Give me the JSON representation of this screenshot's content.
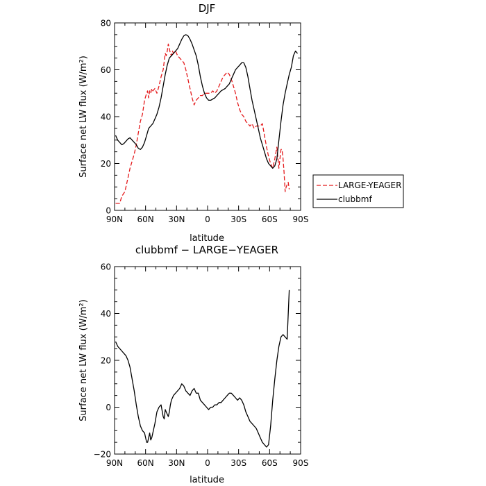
{
  "chart_data": [
    {
      "type": "line",
      "title": "DJF",
      "xlabel": "latitude",
      "ylabel": "Surface net LW flux (W/m²)",
      "xlim": [
        90,
        -90
      ],
      "ylim": [
        0,
        80
      ],
      "x_ticks": [
        {
          "value": 90,
          "label": "90N"
        },
        {
          "value": 60,
          "label": "60N"
        },
        {
          "value": 30,
          "label": "30N"
        },
        {
          "value": 0,
          "label": "0"
        },
        {
          "value": -30,
          "label": "30S"
        },
        {
          "value": -60,
          "label": "60S"
        },
        {
          "value": -90,
          "label": "90S"
        }
      ],
      "y_ticks": [
        {
          "value": 0,
          "label": "0"
        },
        {
          "value": 20,
          "label": "20"
        },
        {
          "value": 40,
          "label": "40"
        },
        {
          "value": 60,
          "label": "60"
        },
        {
          "value": 80,
          "label": "80"
        }
      ],
      "legend_position": "right",
      "series": [
        {
          "name": "LARGE-YEAGER",
          "color": "#e41a1c",
          "style": "dashed",
          "x": [
            89,
            85,
            83,
            80,
            77,
            75,
            73,
            71,
            69,
            67,
            65,
            63,
            61,
            59,
            58,
            57,
            56,
            55,
            54,
            53,
            51,
            49,
            47,
            45,
            43,
            41,
            40,
            39,
            38,
            37,
            36,
            35,
            34,
            33,
            31,
            29,
            27,
            25,
            23,
            21,
            19,
            17,
            15,
            13,
            11,
            9,
            7,
            5,
            3,
            1,
            -1,
            -3,
            -5,
            -7,
            -9,
            -11,
            -13,
            -15,
            -17,
            -19,
            -21,
            -23,
            -25,
            -27,
            -29,
            -31,
            -33,
            -35,
            -37,
            -39,
            -41,
            -43,
            -45,
            -47,
            -49,
            -51,
            -53,
            -55,
            -57,
            -59,
            -61,
            -63,
            -65,
            -67,
            -69,
            -71,
            -72,
            -73,
            -74,
            -75,
            -76,
            -78,
            -79
          ],
          "y": [
            3,
            3,
            6,
            8,
            14,
            18,
            21,
            24,
            28,
            33,
            38,
            41,
            47,
            50,
            51,
            48,
            51,
            50,
            52,
            51,
            52,
            50,
            53,
            57,
            60,
            67,
            66,
            68,
            71,
            69,
            67,
            66,
            68,
            67,
            68,
            66,
            65,
            64,
            63,
            60,
            56,
            52,
            48,
            45,
            47,
            48,
            49,
            49,
            50,
            50,
            50,
            50,
            51,
            50,
            51,
            53,
            55,
            57,
            58,
            59,
            58,
            56,
            53,
            50,
            46,
            43,
            41,
            40,
            38,
            37,
            36,
            37,
            35,
            36,
            36,
            36,
            37,
            32,
            27,
            23,
            20,
            18,
            22,
            27,
            18,
            26,
            26,
            22,
            16,
            8,
            10,
            12,
            9
          ]
        },
        {
          "name": "clubbmf",
          "color": "#000000",
          "style": "solid",
          "x": [
            89,
            87,
            85,
            83,
            81,
            79,
            77,
            75,
            73,
            71,
            69,
            67,
            65,
            63,
            61,
            59,
            57,
            55,
            53,
            51,
            49,
            47,
            45,
            43,
            41,
            39,
            37,
            35,
            33,
            31,
            29,
            27,
            25,
            23,
            21,
            19,
            17,
            15,
            13,
            11,
            9,
            7,
            5,
            3,
            1,
            -1,
            -3,
            -5,
            -7,
            -9,
            -11,
            -13,
            -15,
            -17,
            -19,
            -21,
            -23,
            -25,
            -27,
            -29,
            -31,
            -33,
            -35,
            -37,
            -39,
            -41,
            -43,
            -45,
            -47,
            -49,
            -51,
            -53,
            -55,
            -57,
            -59,
            -61,
            -63,
            -65,
            -67,
            -69,
            -71,
            -73,
            -75,
            -77,
            -79,
            -81,
            -83,
            -85,
            -87
          ],
          "y": [
            32,
            30,
            29,
            28,
            28.5,
            29.5,
            30.5,
            31,
            30,
            29,
            28,
            26.5,
            26,
            27,
            29,
            32,
            35,
            36,
            37,
            39,
            41,
            44,
            48,
            53,
            58,
            62,
            65,
            66,
            67,
            68,
            69,
            71,
            73,
            74.5,
            75,
            74.5,
            73,
            71,
            68.5,
            66,
            62,
            57,
            53,
            50,
            48,
            47,
            47,
            47.5,
            48,
            49,
            50,
            51,
            51.5,
            52,
            53,
            54,
            56,
            58,
            60,
            61,
            62,
            63,
            63,
            61,
            57,
            52,
            47,
            43,
            39,
            35,
            31,
            28,
            25,
            22,
            20,
            19,
            18,
            19,
            22,
            30,
            38,
            45,
            50,
            54,
            58,
            61,
            66,
            68,
            67
          ]
        }
      ]
    },
    {
      "type": "line",
      "title": "clubbmf − LARGE−YEAGER",
      "xlabel": "latitude",
      "ylabel": "Surface net LW flux (W/m²)",
      "xlim": [
        90,
        -90
      ],
      "ylim": [
        -20,
        60
      ],
      "x_ticks": [
        {
          "value": 90,
          "label": "90N"
        },
        {
          "value": 60,
          "label": "60N"
        },
        {
          "value": 30,
          "label": "30N"
        },
        {
          "value": 0,
          "label": "0"
        },
        {
          "value": -30,
          "label": "30S"
        },
        {
          "value": -60,
          "label": "60S"
        },
        {
          "value": -90,
          "label": "90S"
        }
      ],
      "y_ticks": [
        {
          "value": -20,
          "label": "−20"
        },
        {
          "value": 0,
          "label": "0"
        },
        {
          "value": 20,
          "label": "20"
        },
        {
          "value": 40,
          "label": "40"
        },
        {
          "value": 60,
          "label": "60"
        }
      ],
      "series": [
        {
          "color": "#000000",
          "style": "solid",
          "x": [
            89,
            87,
            85,
            83,
            81,
            79,
            77,
            75,
            73,
            71,
            69,
            67,
            65,
            63,
            61,
            59,
            58,
            57,
            56,
            55,
            54,
            53,
            52,
            51,
            49,
            47,
            45,
            43,
            42,
            41,
            40,
            39,
            38,
            37,
            36,
            35,
            33,
            31,
            29,
            27,
            25,
            23,
            21,
            19,
            17,
            15,
            13,
            11,
            9,
            7,
            5,
            3,
            1,
            -1,
            -3,
            -5,
            -7,
            -9,
            -11,
            -13,
            -15,
            -17,
            -19,
            -21,
            -23,
            -25,
            -27,
            -29,
            -31,
            -33,
            -35,
            -37,
            -39,
            -41,
            -43,
            -45,
            -47,
            -49,
            -51,
            -53,
            -55,
            -57,
            -59,
            -61,
            -63,
            -65,
            -67,
            -69,
            -71,
            -73,
            -75,
            -77,
            -79
          ],
          "y": [
            28,
            26,
            25,
            24,
            23,
            22,
            20,
            17,
            12,
            7,
            1,
            -4,
            -8,
            -10,
            -11,
            -15,
            -15,
            -13,
            -11,
            -14,
            -13,
            -11,
            -9,
            -7,
            -2,
            0,
            1,
            -4,
            -5,
            -1,
            -2,
            -3,
            -4,
            -2,
            1,
            3,
            5,
            6,
            7,
            8,
            10,
            9,
            7,
            6,
            5,
            7,
            8,
            6,
            6,
            3,
            2,
            1,
            0,
            -1,
            0,
            0,
            1,
            1,
            2,
            2,
            3,
            4,
            5,
            6,
            6,
            5,
            4,
            3,
            4,
            3,
            1,
            -2,
            -4,
            -6,
            -7,
            -8,
            -9,
            -11,
            -13,
            -15,
            -16,
            -17,
            -16,
            -8,
            3,
            12,
            20,
            26,
            30,
            31,
            30,
            29,
            50
          ]
        }
      ]
    }
  ]
}
